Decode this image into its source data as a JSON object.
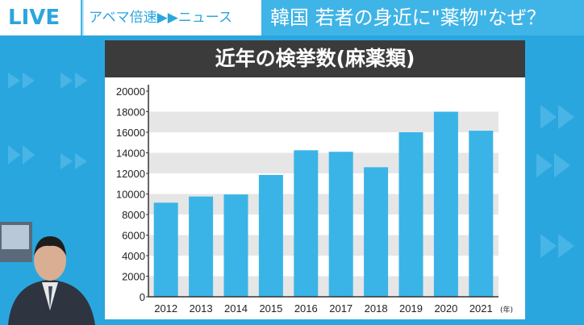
{
  "header": {
    "live": "LIVE",
    "brand": "アベマ倍速▶▶ニュース",
    "headline": "韓国 若者の身近に\"薬物\"なぜ？"
  },
  "colors": {
    "background": "#2aa6de",
    "bar": "#3ab4e6",
    "title_bar": "#3b3b3b",
    "band": "#e6e6e6"
  },
  "chart_data": {
    "type": "bar",
    "title": "近年の検挙数(麻薬類)",
    "xlabel": "(年)",
    "ylabel": "",
    "categories": [
      "2012",
      "2013",
      "2014",
      "2015",
      "2016",
      "2017",
      "2018",
      "2019",
      "2020",
      "2021"
    ],
    "values": [
      9150,
      9750,
      9950,
      11850,
      14250,
      14100,
      12600,
      16000,
      18000,
      16150
    ],
    "ylim": [
      0,
      20000
    ],
    "yticks": [
      "0",
      "2000",
      "4000",
      "6000",
      "8000",
      "10000",
      "12000",
      "14000",
      "16000",
      "18000",
      "20000"
    ],
    "grid": "alternating horizontal bands",
    "legend": "none"
  }
}
